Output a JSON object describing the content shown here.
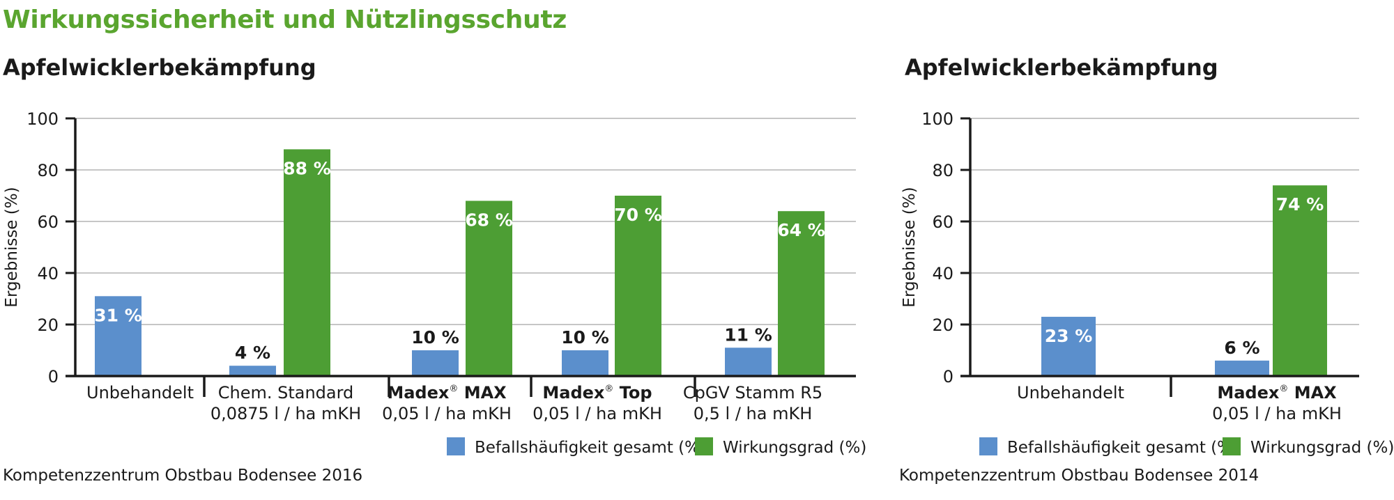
{
  "page": {
    "title": "Wirkungssicherheit und Nützlingsschutz"
  },
  "colors": {
    "title_green": "#5aa52f",
    "series_befall": "#5b8fcc",
    "series_wirkung": "#4d9e34",
    "grid": "#b3b3b3",
    "axis": "#1a1a1a"
  },
  "chart_data": [
    {
      "type": "bar",
      "title": "Apfelwicklerbekämpfung",
      "source": "Kompetenzzentrum Obstbau Bodensee 2016",
      "ylabel": "Ergebnisse (%)",
      "ylim": [
        0,
        100
      ],
      "yticks": [
        0,
        20,
        40,
        60,
        80,
        100
      ],
      "grid": true,
      "legend_position": "bottom-right",
      "categories": [
        {
          "name": "Unbehandelt",
          "name_bold": "",
          "name_rest": "",
          "dose": ""
        },
        {
          "name": "Chem. Standard",
          "name_bold": "",
          "name_rest": "",
          "dose": "0,0875 l / ha mKH"
        },
        {
          "name": "",
          "name_bold": "Madex",
          "name_rest": " MAX",
          "dose": "0,05 l / ha mKH"
        },
        {
          "name": "",
          "name_bold": "Madex",
          "name_rest": " Top",
          "dose": "0,05 l / ha mKH"
        },
        {
          "name": "CpGV Stamm R5",
          "name_bold": "",
          "name_rest": "",
          "dose": "0,5 l / ha mKH"
        }
      ],
      "series": [
        {
          "name": "Befallshäufigkeit gesamt (%)",
          "values": [
            31,
            4,
            10,
            10,
            11
          ],
          "labels": [
            "31 %",
            "4 %",
            "10 %",
            "10 %",
            "11 %"
          ]
        },
        {
          "name": "Wirkungsgrad (%)",
          "values": [
            null,
            88,
            68,
            70,
            64
          ],
          "labels": [
            "",
            "88 %",
            "68 %",
            "70 %",
            "64 %"
          ]
        }
      ]
    },
    {
      "type": "bar",
      "title": "Apfelwicklerbekämpfung",
      "source": "Kompetenzzentrum Obstbau Bodensee 2014",
      "ylabel": "Ergebnisse (%)",
      "ylim": [
        0,
        100
      ],
      "yticks": [
        0,
        20,
        40,
        60,
        80,
        100
      ],
      "grid": true,
      "legend_position": "bottom-right",
      "categories": [
        {
          "name": "Unbehandelt",
          "name_bold": "",
          "name_rest": "",
          "dose": ""
        },
        {
          "name": "",
          "name_bold": "Madex",
          "name_rest": " MAX",
          "dose": "0,05 l / ha mKH"
        }
      ],
      "series": [
        {
          "name": "Befallshäufigkeit gesamt (%)",
          "values": [
            23,
            6
          ],
          "labels": [
            "23 %",
            "6 %"
          ]
        },
        {
          "name": "Wirkungsgrad (%)",
          "values": [
            null,
            74
          ],
          "labels": [
            "",
            "74 %"
          ]
        }
      ]
    }
  ]
}
